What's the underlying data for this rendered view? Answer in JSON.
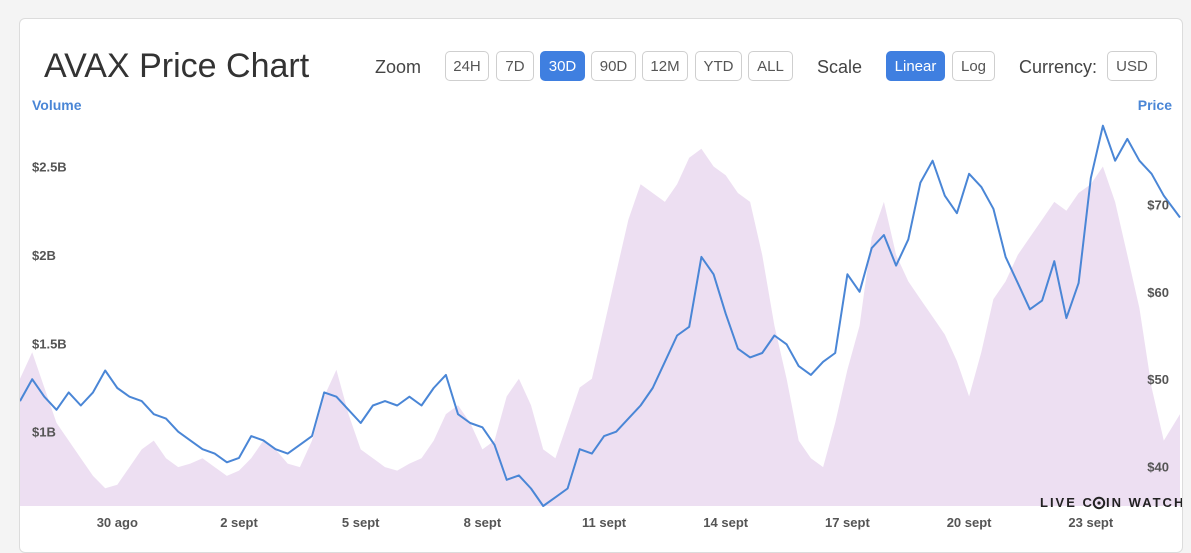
{
  "title": "AVAX Price Chart",
  "controls": {
    "zoom_label": "Zoom",
    "zoom_options": [
      "24H",
      "7D",
      "30D",
      "90D",
      "12M",
      "YTD",
      "ALL"
    ],
    "zoom_selected": "30D",
    "scale_label": "Scale",
    "scale_options": [
      "Linear",
      "Log"
    ],
    "scale_selected": "Linear",
    "currency_label": "Currency:",
    "currency_value": "USD"
  },
  "watermark": "LIVE COIN WATCH",
  "colors": {
    "price_line": "#4a86d6",
    "volume_fill": "#eddff2",
    "accent": "#3f7fe0"
  },
  "chart_data": {
    "type": "line",
    "left_axis": {
      "title": "Volume",
      "ticks": [
        "$1B",
        "$1.5B",
        "$2B",
        "$2.5B"
      ],
      "tick_values": [
        1.0,
        1.5,
        2.0,
        2.5
      ],
      "range": [
        0.58,
        2.78
      ],
      "unit": "billion USD"
    },
    "right_axis": {
      "title": "Price",
      "ticks": [
        "$40",
        "$50",
        "$60",
        "$70"
      ],
      "tick_values": [
        40,
        50,
        60,
        70
      ],
      "range": [
        35.5,
        80
      ]
    },
    "x_ticks": [
      "30 ago",
      "2 sept",
      "5 sept",
      "8 sept",
      "11 sept",
      "14 sept",
      "17 sept",
      "20 sept",
      "23 sept"
    ],
    "x_tick_days": [
      0,
      3,
      6,
      9,
      12,
      15,
      18,
      21,
      24
    ],
    "x_range": [
      -2.4,
      26.2
    ],
    "series": [
      {
        "name": "Price",
        "points": [
          [
            -2.4,
            47.5
          ],
          [
            -2.1,
            50.0
          ],
          [
            -1.8,
            48.0
          ],
          [
            -1.5,
            46.5
          ],
          [
            -1.2,
            48.5
          ],
          [
            -0.9,
            47.0
          ],
          [
            -0.6,
            48.5
          ],
          [
            -0.3,
            51.0
          ],
          [
            0.0,
            49.0
          ],
          [
            0.3,
            48.0
          ],
          [
            0.6,
            47.5
          ],
          [
            0.9,
            46.0
          ],
          [
            1.2,
            45.5
          ],
          [
            1.5,
            44.0
          ],
          [
            1.8,
            43.0
          ],
          [
            2.1,
            42.0
          ],
          [
            2.4,
            41.5
          ],
          [
            2.7,
            40.5
          ],
          [
            3.0,
            41.0
          ],
          [
            3.3,
            43.5
          ],
          [
            3.6,
            43.0
          ],
          [
            3.9,
            42.0
          ],
          [
            4.2,
            41.5
          ],
          [
            4.5,
            42.5
          ],
          [
            4.8,
            43.5
          ],
          [
            5.1,
            48.5
          ],
          [
            5.4,
            48.0
          ],
          [
            5.7,
            46.5
          ],
          [
            6.0,
            45.0
          ],
          [
            6.3,
            47.0
          ],
          [
            6.6,
            47.5
          ],
          [
            6.9,
            47.0
          ],
          [
            7.2,
            48.0
          ],
          [
            7.5,
            47.0
          ],
          [
            7.8,
            49.0
          ],
          [
            8.1,
            50.5
          ],
          [
            8.4,
            46.0
          ],
          [
            8.7,
            45.0
          ],
          [
            9.0,
            44.5
          ],
          [
            9.3,
            42.5
          ],
          [
            9.6,
            38.5
          ],
          [
            9.9,
            39.0
          ],
          [
            10.2,
            37.5
          ],
          [
            10.5,
            35.5
          ],
          [
            10.8,
            36.5
          ],
          [
            11.1,
            37.5
          ],
          [
            11.4,
            42.0
          ],
          [
            11.7,
            41.5
          ],
          [
            12.0,
            43.5
          ],
          [
            12.3,
            44.0
          ],
          [
            12.6,
            45.5
          ],
          [
            12.9,
            47.0
          ],
          [
            13.2,
            49.0
          ],
          [
            13.5,
            52.0
          ],
          [
            13.8,
            55.0
          ],
          [
            14.1,
            56.0
          ],
          [
            14.4,
            64.0
          ],
          [
            14.7,
            62.0
          ],
          [
            15.0,
            57.5
          ],
          [
            15.3,
            53.5
          ],
          [
            15.6,
            52.5
          ],
          [
            15.9,
            53.0
          ],
          [
            16.2,
            55.0
          ],
          [
            16.5,
            54.0
          ],
          [
            16.8,
            51.5
          ],
          [
            17.1,
            50.5
          ],
          [
            17.4,
            52.0
          ],
          [
            17.7,
            53.0
          ],
          [
            18.0,
            62.0
          ],
          [
            18.3,
            60.0
          ],
          [
            18.6,
            65.0
          ],
          [
            18.9,
            66.5
          ],
          [
            19.2,
            63.0
          ],
          [
            19.5,
            66.0
          ],
          [
            19.8,
            72.5
          ],
          [
            20.1,
            75.0
          ],
          [
            20.4,
            71.0
          ],
          [
            20.7,
            69.0
          ],
          [
            21.0,
            73.5
          ],
          [
            21.3,
            72.0
          ],
          [
            21.6,
            69.5
          ],
          [
            21.9,
            64.0
          ],
          [
            22.2,
            61.0
          ],
          [
            22.5,
            58.0
          ],
          [
            22.8,
            59.0
          ],
          [
            23.1,
            63.5
          ],
          [
            23.4,
            57.0
          ],
          [
            23.7,
            61.0
          ],
          [
            24.0,
            73.0
          ],
          [
            24.3,
            79.0
          ],
          [
            24.6,
            75.0
          ],
          [
            24.9,
            77.5
          ],
          [
            25.2,
            75.0
          ],
          [
            25.5,
            73.5
          ],
          [
            25.8,
            71.0
          ],
          [
            26.2,
            68.5
          ]
        ]
      },
      {
        "name": "Volume",
        "points": [
          [
            -2.4,
            1.3
          ],
          [
            -2.1,
            1.45
          ],
          [
            -1.8,
            1.25
          ],
          [
            -1.5,
            1.05
          ],
          [
            -1.2,
            0.95
          ],
          [
            -0.9,
            0.85
          ],
          [
            -0.6,
            0.75
          ],
          [
            -0.3,
            0.68
          ],
          [
            0.0,
            0.7
          ],
          [
            0.3,
            0.8
          ],
          [
            0.6,
            0.9
          ],
          [
            0.9,
            0.95
          ],
          [
            1.2,
            0.85
          ],
          [
            1.5,
            0.8
          ],
          [
            1.8,
            0.82
          ],
          [
            2.1,
            0.85
          ],
          [
            2.4,
            0.8
          ],
          [
            2.7,
            0.75
          ],
          [
            3.0,
            0.78
          ],
          [
            3.3,
            0.85
          ],
          [
            3.6,
            0.95
          ],
          [
            3.9,
            0.9
          ],
          [
            4.2,
            0.82
          ],
          [
            4.5,
            0.8
          ],
          [
            4.8,
            0.95
          ],
          [
            5.1,
            1.2
          ],
          [
            5.4,
            1.35
          ],
          [
            5.7,
            1.1
          ],
          [
            6.0,
            0.9
          ],
          [
            6.3,
            0.85
          ],
          [
            6.6,
            0.8
          ],
          [
            6.9,
            0.78
          ],
          [
            7.2,
            0.82
          ],
          [
            7.5,
            0.85
          ],
          [
            7.8,
            0.95
          ],
          [
            8.1,
            1.1
          ],
          [
            8.4,
            1.15
          ],
          [
            8.7,
            1.05
          ],
          [
            9.0,
            0.9
          ],
          [
            9.3,
            0.95
          ],
          [
            9.6,
            1.2
          ],
          [
            9.9,
            1.3
          ],
          [
            10.2,
            1.15
          ],
          [
            10.5,
            0.9
          ],
          [
            10.8,
            0.85
          ],
          [
            11.1,
            1.05
          ],
          [
            11.4,
            1.25
          ],
          [
            11.7,
            1.3
          ],
          [
            12.0,
            1.6
          ],
          [
            12.3,
            1.9
          ],
          [
            12.6,
            2.2
          ],
          [
            12.9,
            2.4
          ],
          [
            13.2,
            2.35
          ],
          [
            13.5,
            2.3
          ],
          [
            13.8,
            2.4
          ],
          [
            14.1,
            2.55
          ],
          [
            14.4,
            2.6
          ],
          [
            14.7,
            2.5
          ],
          [
            15.0,
            2.45
          ],
          [
            15.3,
            2.35
          ],
          [
            15.6,
            2.3
          ],
          [
            15.9,
            2.0
          ],
          [
            16.2,
            1.6
          ],
          [
            16.5,
            1.3
          ],
          [
            16.8,
            0.95
          ],
          [
            17.1,
            0.85
          ],
          [
            17.4,
            0.8
          ],
          [
            17.7,
            1.05
          ],
          [
            18.0,
            1.35
          ],
          [
            18.3,
            1.6
          ],
          [
            18.6,
            2.1
          ],
          [
            18.9,
            2.3
          ],
          [
            19.2,
            2.0
          ],
          [
            19.5,
            1.85
          ],
          [
            19.8,
            1.75
          ],
          [
            20.1,
            1.65
          ],
          [
            20.4,
            1.55
          ],
          [
            20.7,
            1.4
          ],
          [
            21.0,
            1.2
          ],
          [
            21.3,
            1.45
          ],
          [
            21.6,
            1.75
          ],
          [
            21.9,
            1.85
          ],
          [
            22.2,
            2.0
          ],
          [
            22.5,
            2.1
          ],
          [
            22.8,
            2.2
          ],
          [
            23.1,
            2.3
          ],
          [
            23.4,
            2.25
          ],
          [
            23.7,
            2.35
          ],
          [
            24.0,
            2.4
          ],
          [
            24.3,
            2.5
          ],
          [
            24.6,
            2.3
          ],
          [
            24.9,
            2.0
          ],
          [
            25.2,
            1.7
          ],
          [
            25.5,
            1.25
          ],
          [
            25.8,
            0.95
          ],
          [
            26.2,
            1.1
          ]
        ]
      }
    ]
  }
}
